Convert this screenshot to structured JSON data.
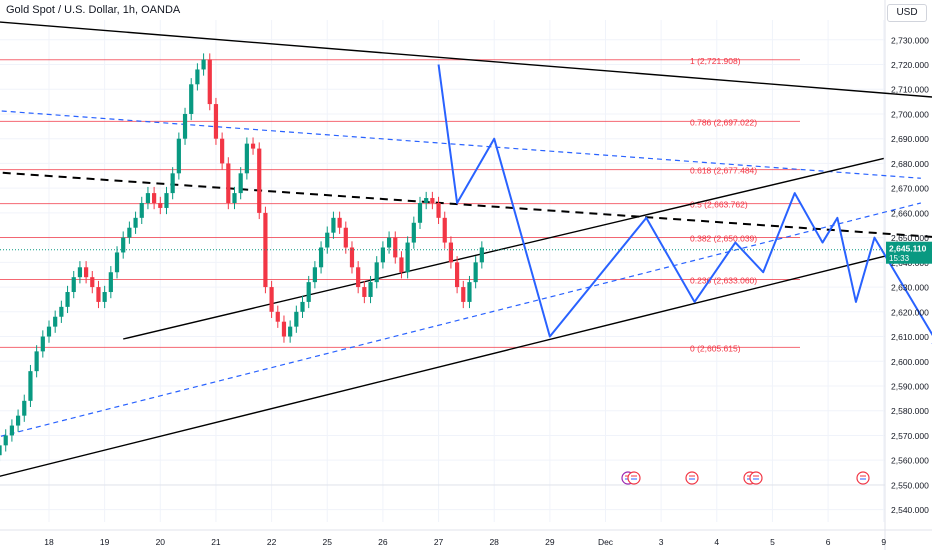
{
  "chart_data": {
    "type": "candlestick",
    "title": "Gold Spot / U.S. Dollar, 1h, OANDA",
    "currency": "USD",
    "y_axis": {
      "range": [
        2535,
        2738
      ],
      "ticks": [
        "2,730.000",
        "2,720.000",
        "2,710.000",
        "2,700.000",
        "2,690.000",
        "2,680.000",
        "2,670.000",
        "2,660.000",
        "2,650.000",
        "2,640.000",
        "2,630.000",
        "2,620.000",
        "2,610.000",
        "2,600.000",
        "2,590.000",
        "2,580.000",
        "2,570.000",
        "2,560.000",
        "2,550.000",
        "2,540.000"
      ],
      "tick_values": [
        2730,
        2720,
        2710,
        2700,
        2690,
        2680,
        2670,
        2660,
        2650,
        2640,
        2630,
        2620,
        2610,
        2600,
        2590,
        2580,
        2570,
        2560,
        2550,
        2540
      ]
    },
    "x_axis": {
      "ticks": [
        "18",
        "19",
        "20",
        "21",
        "22",
        "25",
        "26",
        "27",
        "28",
        "29",
        "Dec",
        "3",
        "4",
        "5",
        "6",
        "9"
      ],
      "tick_index": [
        3,
        6,
        9,
        12,
        15,
        18,
        21,
        24,
        27,
        30,
        33,
        36,
        39,
        42,
        45,
        48
      ]
    },
    "last_price": {
      "value": 2645.11,
      "label": "2,645.110",
      "countdown": "15:33",
      "color": "#089981"
    },
    "fibonacci": {
      "color": "#f23645",
      "levels": [
        {
          "ratio": "1",
          "price": 2721.908,
          "label": "1 (2,721.908)"
        },
        {
          "ratio": "0.786",
          "price": 2697.022,
          "label": "0.786 (2,697.022)"
        },
        {
          "ratio": "0.618",
          "price": 2677.484,
          "label": "0.618 (2,677.484)"
        },
        {
          "ratio": "0.5",
          "price": 2663.762,
          "label": "0.5 (2,663.762)"
        },
        {
          "ratio": "0.382",
          "price": 2650.039,
          "label": "0.382 (2,650.039)"
        },
        {
          "ratio": "0.236",
          "price": 2633.06,
          "label": "0.236 (2,633.060)"
        },
        {
          "ratio": "0",
          "price": 2605.615,
          "label": "0 (2,605.615)"
        }
      ]
    },
    "colors": {
      "up": "#089981",
      "down": "#f23645",
      "trend": "#000000",
      "channel": "#2962ff",
      "wave": "#2962ff",
      "grid": "#f0f3fa"
    },
    "candles": {
      "start_index": 0,
      "bars_per_day": 3,
      "closes": [
        2562,
        2566,
        2570,
        2574,
        2578,
        2584,
        2596,
        2604,
        2610,
        2614,
        2618,
        2622,
        2628,
        2634,
        2638,
        2634,
        2630,
        2624,
        2628,
        2636,
        2644,
        2650,
        2654,
        2658,
        2664,
        2668,
        2664,
        2662,
        2668,
        2676,
        2690,
        2700,
        2712,
        2718,
        2722,
        2704,
        2690,
        2680,
        2664,
        2668,
        2676,
        2688,
        2686,
        2660,
        2630,
        2620,
        2616,
        2610,
        2614,
        2620,
        2624,
        2632,
        2638,
        2646,
        2652,
        2658,
        2654,
        2646,
        2638,
        2630,
        2626,
        2632,
        2640,
        2646,
        2650,
        2642,
        2636,
        2648,
        2656,
        2664,
        2666,
        2664,
        2658,
        2648,
        2640,
        2630,
        2624,
        2632,
        2640,
        2646
      ]
    },
    "trendlines": [
      {
        "style": "solid",
        "points": [
          [
            -1,
            2738
          ],
          [
            57,
            2703
          ]
        ]
      },
      {
        "style": "dashed",
        "points": [
          [
            -1,
            2677
          ],
          [
            57,
            2647
          ]
        ]
      },
      {
        "style": "solid",
        "points": [
          [
            -1,
            2551
          ],
          [
            51,
            2648
          ]
        ]
      },
      {
        "style": "solid",
        "points": [
          [
            7,
            2609
          ],
          [
            48,
            2682
          ]
        ]
      }
    ],
    "channel_lines": [
      {
        "points": [
          [
            -1,
            2702
          ],
          [
            50,
            2674
          ]
        ]
      },
      {
        "points": [
          [
            -1,
            2567
          ],
          [
            50,
            2664
          ]
        ]
      }
    ],
    "wave_path": [
      [
        24.0,
        2720
      ],
      [
        25.0,
        2664
      ],
      [
        27.0,
        2690
      ],
      [
        30.0,
        2610
      ],
      [
        35.2,
        2658
      ],
      [
        37.8,
        2624
      ],
      [
        40.0,
        2648
      ],
      [
        41.5,
        2636
      ],
      [
        43.2,
        2668
      ],
      [
        44.7,
        2648
      ],
      [
        45.5,
        2658
      ],
      [
        46.5,
        2624
      ],
      [
        47.5,
        2650
      ],
      [
        51.0,
        2606
      ]
    ]
  }
}
